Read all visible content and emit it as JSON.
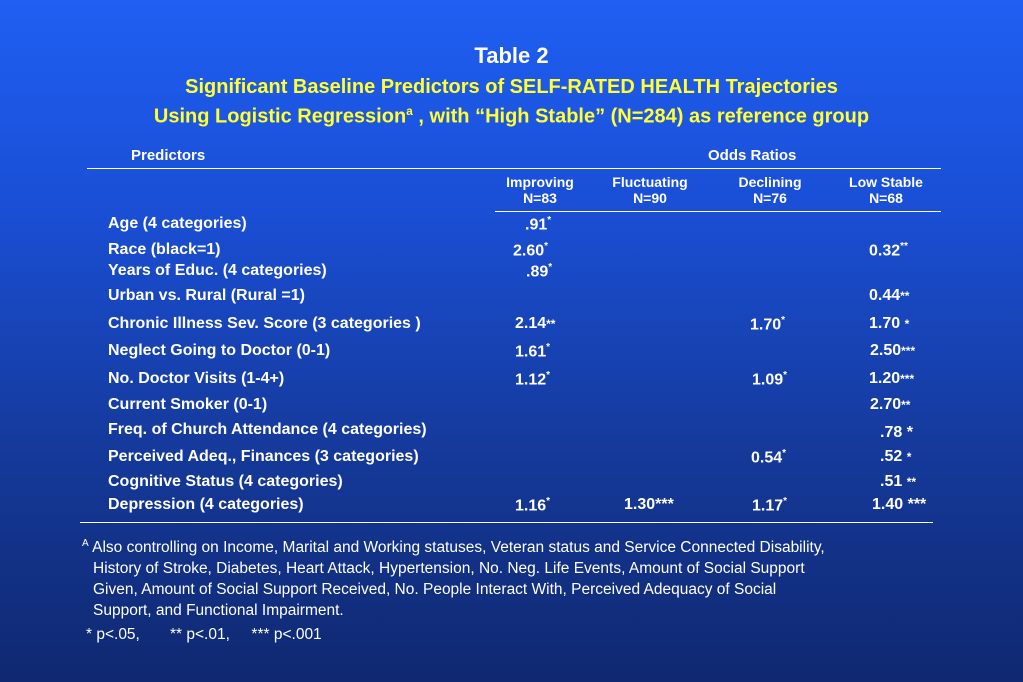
{
  "title": {
    "line1": "Table 2",
    "line2": "Significant Baseline Predictors of SELF-RATED HEALTH  Trajectories",
    "line3a": "Using Logistic Regression",
    "line3sup": "a",
    "line3b": " , with “High Stable” (N=284) as reference group"
  },
  "header": {
    "predictors": "Predictors",
    "odds_ratios": "Odds Ratios"
  },
  "columns": [
    {
      "label": "Improving",
      "n": "N=83"
    },
    {
      "label": "Fluctuating",
      "n": "N=90"
    },
    {
      "label": "Declining",
      "n": "N=76"
    },
    {
      "label": "Low Stable",
      "n": "N=68"
    }
  ],
  "rows": [
    {
      "label": "Age (4 categories)"
    },
    {
      "label": "Race (black=1)"
    },
    {
      "label": "Years of Educ. (4 categories)"
    },
    {
      "label": "Urban vs. Rural (Rural =1)"
    },
    {
      "label": "Chronic Illness Sev. Score (3 categories )"
    },
    {
      "label": "Neglect Going to Doctor (0-1)"
    },
    {
      "label": "No. Doctor Visits (1-4+)"
    },
    {
      "label": "Current Smoker (0-1)"
    },
    {
      "label": "Freq. of Church Attendance (4 categories)"
    },
    {
      "label": "Perceived Adeq., Finances (3 categories)"
    },
    {
      "label": "Cognitive Status (4 categories)"
    },
    {
      "label": "Depression  (4 categories)"
    }
  ],
  "cells": {
    "age_imp": {
      "v": ".91",
      "s": "*"
    },
    "race_imp": {
      "v": "2.60",
      "s": "*"
    },
    "race_low": {
      "v": "0.32",
      "s": "**"
    },
    "educ_imp": {
      "v": ".89",
      "s": "*"
    },
    "urban_low": {
      "v": "0.44",
      "s": "**"
    },
    "chronic_imp": {
      "v": "2.14",
      "s": "**"
    },
    "chronic_dec": {
      "v": "1.70",
      "s": "*"
    },
    "chronic_low": {
      "v": "1.70",
      "s": "*"
    },
    "neglect_imp": {
      "v": "1.61",
      "s": "*"
    },
    "neglect_low": {
      "v": "2.50",
      "s": "***"
    },
    "visits_imp": {
      "v": "1.12",
      "s": "*"
    },
    "visits_dec": {
      "v": "1.09",
      "s": "*"
    },
    "visits_low": {
      "v": "1.20",
      "s": "***"
    },
    "smoker_low": {
      "v": "2.70",
      "s": "**"
    },
    "church_low": {
      "v": ".78 *",
      "s": ""
    },
    "finances_dec": {
      "v": "0.54",
      "s": "*"
    },
    "finances_low": {
      "v": ".52",
      "s": "*"
    },
    "cognitive_low": {
      "v": ".51",
      "s": "**"
    },
    "depression_imp": {
      "v": "1.16",
      "s": "*"
    },
    "depression_fluc": {
      "v": "1.30***",
      "s": ""
    },
    "depression_dec": {
      "v": "1.17",
      "s": "*"
    },
    "depression_low": {
      "v": "1.40 ***",
      "s": ""
    }
  },
  "footnote": {
    "sup": "A",
    "line1": "Also controlling on Income, Marital and Working statuses, Veteran status and Service Connected Disability,",
    "line2": "History of Stroke, Diabetes, Heart Attack, Hypertension, No. Neg. Life Events, Amount of Social Support",
    "line3": "Given, Amount of Social Support Received, No. People Interact With, Perceived Adequacy of Social",
    "line4": "Support, and Functional Impairment.",
    "pvalues": "* p<.05,       ** p<.01,     *** p<.001"
  }
}
